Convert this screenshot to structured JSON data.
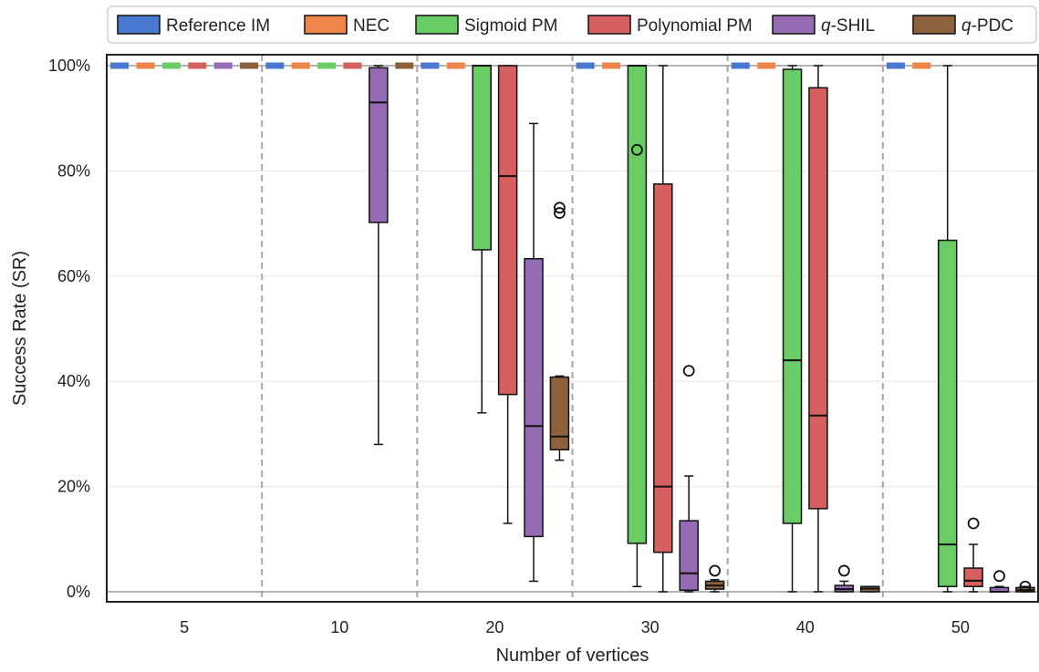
{
  "chart_data": {
    "type": "box",
    "xlabel": "Number of vertices",
    "ylabel": "Success Rate (SR)",
    "ylim": [
      0,
      100
    ],
    "yticks": [
      0,
      20,
      40,
      60,
      80,
      100
    ],
    "ytick_labels": [
      "0%",
      "20%",
      "40%",
      "60%",
      "80%",
      "100%"
    ],
    "categories": [
      "5",
      "10",
      "20",
      "30",
      "40",
      "50"
    ],
    "grid": true,
    "legend_position": "top",
    "series": [
      {
        "name": "Reference IM",
        "color": "#4878d0",
        "boxes": [
          {
            "min": 100,
            "q1": 100,
            "median": 100,
            "q3": 100,
            "max": 100,
            "outliers": []
          },
          {
            "min": 100,
            "q1": 100,
            "median": 100,
            "q3": 100,
            "max": 100,
            "outliers": []
          },
          {
            "min": 100,
            "q1": 100,
            "median": 100,
            "q3": 100,
            "max": 100,
            "outliers": []
          },
          {
            "min": 100,
            "q1": 100,
            "median": 100,
            "q3": 100,
            "max": 100,
            "outliers": []
          },
          {
            "min": 100,
            "q1": 100,
            "median": 100,
            "q3": 100,
            "max": 100,
            "outliers": []
          },
          {
            "min": 100,
            "q1": 100,
            "median": 100,
            "q3": 100,
            "max": 100,
            "outliers": []
          }
        ]
      },
      {
        "name": "NEC",
        "color": "#ee854a",
        "boxes": [
          {
            "min": 100,
            "q1": 100,
            "median": 100,
            "q3": 100,
            "max": 100,
            "outliers": []
          },
          {
            "min": 100,
            "q1": 100,
            "median": 100,
            "q3": 100,
            "max": 100,
            "outliers": []
          },
          {
            "min": 100,
            "q1": 100,
            "median": 100,
            "q3": 100,
            "max": 100,
            "outliers": []
          },
          {
            "min": 100,
            "q1": 100,
            "median": 100,
            "q3": 100,
            "max": 100,
            "outliers": []
          },
          {
            "min": 100,
            "q1": 100,
            "median": 100,
            "q3": 100,
            "max": 100,
            "outliers": []
          },
          {
            "min": 100,
            "q1": 100,
            "median": 100,
            "q3": 100,
            "max": 100,
            "outliers": []
          }
        ]
      },
      {
        "name": "Sigmoid PM",
        "color": "#6acc64",
        "boxes": [
          {
            "min": 100,
            "q1": 100,
            "median": 100,
            "q3": 100,
            "max": 100,
            "outliers": []
          },
          {
            "min": 100,
            "q1": 100,
            "median": 100,
            "q3": 100,
            "max": 100,
            "outliers": []
          },
          {
            "min": 34,
            "q1": 65,
            "median": 100,
            "q3": 100,
            "max": 100,
            "outliers": []
          },
          {
            "min": 1,
            "q1": 9.2,
            "median": 100,
            "q3": 100,
            "max": 100,
            "outliers": [
              84
            ]
          },
          {
            "min": 0,
            "q1": 13,
            "median": 44,
            "q3": 99.3,
            "max": 100,
            "outliers": []
          },
          {
            "min": 0,
            "q1": 1,
            "median": 9,
            "q3": 66.8,
            "max": 100,
            "outliers": []
          }
        ]
      },
      {
        "name": "Polynomial PM",
        "color": "#d65f5f",
        "boxes": [
          {
            "min": 100,
            "q1": 100,
            "median": 100,
            "q3": 100,
            "max": 100,
            "outliers": []
          },
          {
            "min": 100,
            "q1": 100,
            "median": 100,
            "q3": 100,
            "max": 100,
            "outliers": []
          },
          {
            "min": 13,
            "q1": 37.5,
            "median": 79,
            "q3": 100,
            "max": 100,
            "outliers": []
          },
          {
            "min": 0,
            "q1": 7.5,
            "median": 20,
            "q3": 77.5,
            "max": 100,
            "outliers": []
          },
          {
            "min": 0,
            "q1": 15.8,
            "median": 33.5,
            "q3": 95.8,
            "max": 100,
            "outliers": []
          },
          {
            "min": 0,
            "q1": 1,
            "median": 2.1,
            "q3": 4.5,
            "max": 9,
            "outliers": [
              13
            ]
          }
        ]
      },
      {
        "name": "q-SHIL",
        "color": "#956cb4",
        "boxes": [
          {
            "min": 100,
            "q1": 100,
            "median": 100,
            "q3": 100,
            "max": 100,
            "outliers": []
          },
          {
            "min": 28,
            "q1": 70.2,
            "median": 93,
            "q3": 99.6,
            "max": 100,
            "outliers": []
          },
          {
            "min": 2,
            "q1": 10.5,
            "median": 31.5,
            "q3": 63.3,
            "max": 89,
            "outliers": []
          },
          {
            "min": 0,
            "q1": 0.3,
            "median": 3.5,
            "q3": 13.5,
            "max": 22,
            "outliers": [
              42
            ]
          },
          {
            "min": 0,
            "q1": 0,
            "median": 0.5,
            "q3": 1.2,
            "max": 2,
            "outliers": [
              4
            ]
          },
          {
            "min": 0,
            "q1": 0,
            "median": 0,
            "q3": 0.8,
            "max": 1,
            "outliers": [
              3
            ]
          }
        ]
      },
      {
        "name": "q-PDC",
        "color": "#8c613c",
        "boxes": [
          {
            "min": 100,
            "q1": 100,
            "median": 100,
            "q3": 100,
            "max": 100,
            "outliers": []
          },
          {
            "min": 100,
            "q1": 100,
            "median": 100,
            "q3": 100,
            "max": 100,
            "outliers": []
          },
          {
            "min": 25,
            "q1": 27,
            "median": 29.5,
            "q3": 40.8,
            "max": 41,
            "outliers": [
              72,
              73
            ]
          },
          {
            "min": 0,
            "q1": 0.5,
            "median": 1.2,
            "q3": 2,
            "max": 2.3,
            "outliers": [
              4
            ]
          },
          {
            "min": 0,
            "q1": 0,
            "median": 0.6,
            "q3": 1,
            "max": 1,
            "outliers": []
          },
          {
            "min": 0,
            "q1": 0,
            "median": 0.3,
            "q3": 0.8,
            "max": 1,
            "outliers": [
              1
            ]
          }
        ]
      }
    ]
  }
}
